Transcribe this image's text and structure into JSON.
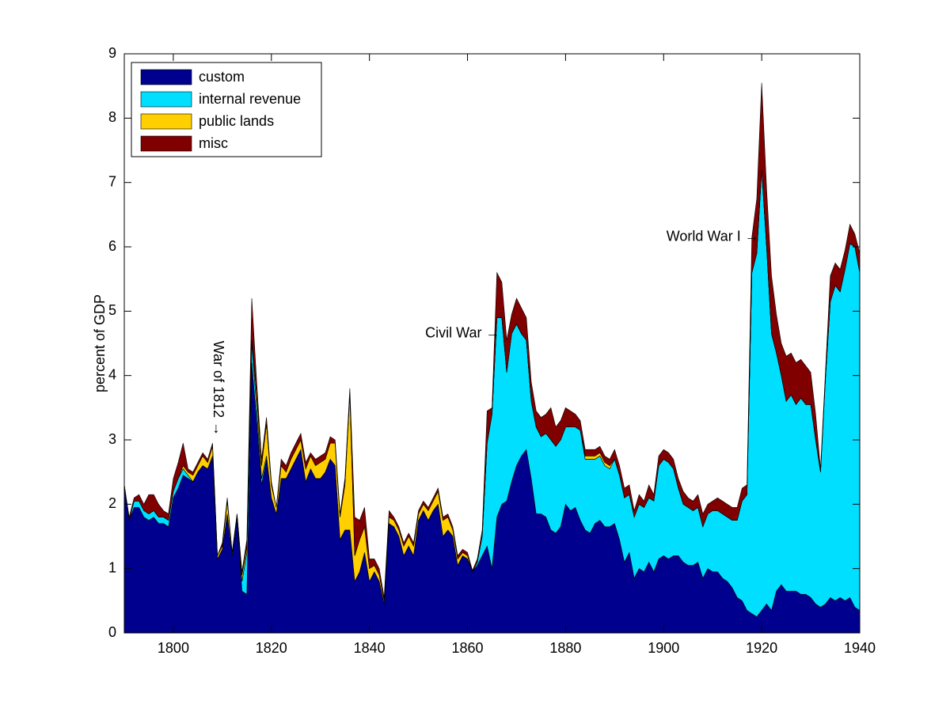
{
  "chart_data": {
    "type": "stacked-area",
    "y_label": "percent of GDP",
    "x": [
      1790,
      1791,
      1792,
      1793,
      1794,
      1795,
      1796,
      1797,
      1798,
      1799,
      1800,
      1801,
      1802,
      1803,
      1804,
      1805,
      1806,
      1807,
      1808,
      1809,
      1810,
      1811,
      1812,
      1813,
      1814,
      1815,
      1816,
      1817,
      1818,
      1819,
      1820,
      1821,
      1822,
      1823,
      1824,
      1825,
      1826,
      1827,
      1828,
      1829,
      1830,
      1831,
      1832,
      1833,
      1834,
      1835,
      1836,
      1837,
      1838,
      1839,
      1840,
      1841,
      1842,
      1843,
      1844,
      1845,
      1846,
      1847,
      1848,
      1849,
      1850,
      1851,
      1852,
      1853,
      1854,
      1855,
      1856,
      1857,
      1858,
      1859,
      1860,
      1861,
      1862,
      1863,
      1864,
      1865,
      1866,
      1867,
      1868,
      1869,
      1870,
      1871,
      1872,
      1873,
      1874,
      1875,
      1876,
      1877,
      1878,
      1879,
      1880,
      1881,
      1882,
      1883,
      1884,
      1885,
      1886,
      1887,
      1888,
      1889,
      1890,
      1891,
      1892,
      1893,
      1894,
      1895,
      1896,
      1897,
      1898,
      1899,
      1900,
      1901,
      1902,
      1903,
      1904,
      1905,
      1906,
      1907,
      1908,
      1909,
      1910,
      1911,
      1912,
      1913,
      1914,
      1915,
      1916,
      1917,
      1918,
      1919,
      1920,
      1921,
      1922,
      1923,
      1924,
      1925,
      1926,
      1927,
      1928,
      1929,
      1930,
      1931,
      1932,
      1933,
      1934,
      1935,
      1936,
      1937,
      1938,
      1939,
      1940
    ],
    "series": [
      {
        "name": "custom",
        "color": "#00008f",
        "values": [
          2.3,
          1.75,
          1.95,
          1.95,
          1.8,
          1.75,
          1.8,
          1.7,
          1.7,
          1.65,
          2.1,
          2.25,
          2.45,
          2.4,
          2.35,
          2.5,
          2.6,
          2.55,
          2.75,
          1.15,
          1.3,
          1.85,
          1.2,
          1.8,
          0.65,
          0.6,
          4.2,
          3.3,
          2.3,
          2.7,
          2.1,
          1.85,
          2.4,
          2.4,
          2.55,
          2.7,
          2.85,
          2.35,
          2.55,
          2.4,
          2.4,
          2.5,
          2.7,
          2.6,
          1.45,
          1.6,
          1.6,
          0.8,
          0.95,
          1.25,
          0.8,
          0.95,
          0.8,
          0.45,
          1.7,
          1.65,
          1.5,
          1.2,
          1.35,
          1.2,
          1.75,
          1.9,
          1.75,
          1.9,
          2.0,
          1.5,
          1.6,
          1.5,
          1.05,
          1.2,
          1.15,
          0.95,
          1.05,
          1.2,
          1.35,
          1.0,
          1.8,
          2.0,
          2.05,
          2.35,
          2.6,
          2.75,
          2.85,
          2.4,
          1.85,
          1.85,
          1.8,
          1.6,
          1.55,
          1.65,
          2.0,
          1.9,
          1.95,
          1.75,
          1.6,
          1.55,
          1.7,
          1.75,
          1.65,
          1.65,
          1.7,
          1.45,
          1.1,
          1.25,
          0.85,
          1.0,
          0.95,
          1.1,
          0.95,
          1.15,
          1.2,
          1.15,
          1.2,
          1.2,
          1.1,
          1.05,
          1.05,
          1.1,
          0.85,
          1.0,
          0.95,
          0.95,
          0.85,
          0.8,
          0.7,
          0.55,
          0.5,
          0.35,
          0.3,
          0.25,
          0.35,
          0.45,
          0.35,
          0.65,
          0.75,
          0.65,
          0.65,
          0.65,
          0.6,
          0.6,
          0.55,
          0.45,
          0.4,
          0.45,
          0.55,
          0.5,
          0.55,
          0.5,
          0.55,
          0.4,
          0.35
        ]
      },
      {
        "name": "internal revenue",
        "color": "#00dfff",
        "values": [
          0,
          0,
          0.1,
          0.1,
          0.1,
          0.1,
          0.1,
          0.1,
          0.1,
          0.1,
          0.1,
          0.15,
          0.1,
          0.05,
          0,
          0,
          0,
          0,
          0,
          0,
          0,
          0,
          0,
          0,
          0.15,
          0.65,
          0.3,
          0.2,
          0.1,
          0.05,
          0,
          0,
          0,
          0,
          0,
          0,
          0,
          0,
          0,
          0,
          0,
          0,
          0,
          0,
          0,
          0,
          0,
          0,
          0,
          0,
          0,
          0,
          0,
          0,
          0,
          0,
          0,
          0,
          0,
          0,
          0,
          0,
          0,
          0,
          0,
          0,
          0,
          0,
          0,
          0,
          0,
          0,
          0.05,
          0.3,
          1.6,
          2.4,
          3.1,
          2.9,
          2.0,
          2.3,
          2.2,
          1.9,
          1.7,
          1.2,
          1.35,
          1.2,
          1.3,
          1.4,
          1.35,
          1.35,
          1.2,
          1.3,
          1.25,
          1.4,
          1.1,
          1.15,
          1.0,
          1.0,
          0.95,
          0.9,
          1.0,
          1.0,
          1.0,
          0.9,
          0.95,
          1.0,
          1.0,
          1.0,
          1.1,
          1.45,
          1.5,
          1.5,
          1.35,
          1.05,
          0.9,
          0.9,
          0.85,
          0.85,
          0.8,
          0.85,
          0.95,
          0.95,
          1.0,
          1.0,
          1.05,
          1.2,
          1.55,
          1.8,
          5.3,
          5.65,
          6.85,
          5.55,
          4.3,
          3.7,
          3.25,
          2.95,
          3.05,
          2.9,
          3.05,
          2.95,
          3.0,
          2.55,
          2.1,
          3.5,
          4.6,
          4.9,
          4.75,
          5.15,
          5.5,
          5.6,
          5.25
        ]
      },
      {
        "name": "public lands",
        "color": "#ffcf00",
        "values": [
          0,
          0,
          0,
          0,
          0,
          0,
          0,
          0,
          0,
          0,
          0,
          0,
          0.05,
          0.05,
          0.1,
          0.1,
          0.15,
          0.1,
          0.15,
          0.05,
          0.05,
          0.2,
          0.05,
          0.05,
          0.1,
          0.1,
          0.05,
          0.2,
          0.2,
          0.5,
          0.2,
          0.1,
          0.2,
          0.1,
          0.15,
          0.15,
          0.15,
          0.2,
          0.2,
          0.2,
          0.25,
          0.2,
          0.25,
          0.35,
          0.35,
          0.7,
          2.1,
          0.4,
          0.5,
          0.4,
          0.2,
          0.1,
          0.1,
          0.05,
          0.1,
          0.1,
          0.1,
          0.15,
          0.15,
          0.15,
          0.1,
          0.1,
          0.15,
          0.15,
          0.2,
          0.25,
          0.2,
          0.1,
          0.1,
          0.05,
          0.05,
          0,
          0,
          0,
          0,
          0,
          0,
          0,
          0,
          0,
          0,
          0,
          0,
          0,
          0,
          0,
          0,
          0,
          0,
          0,
          0,
          0,
          0,
          0,
          0.05,
          0.05,
          0.05,
          0.05,
          0.05,
          0.05,
          0,
          0,
          0,
          0,
          0,
          0,
          0,
          0,
          0,
          0,
          0,
          0,
          0,
          0,
          0,
          0,
          0,
          0,
          0,
          0,
          0,
          0,
          0,
          0,
          0,
          0,
          0,
          0,
          0,
          0,
          0,
          0,
          0,
          0,
          0,
          0,
          0,
          0,
          0,
          0,
          0,
          0,
          0,
          0,
          0,
          0,
          0,
          0,
          0,
          0,
          0
        ]
      },
      {
        "name": "misc",
        "color": "#800000",
        "values": [
          0,
          0.05,
          0.05,
          0.1,
          0.1,
          0.3,
          0.25,
          0.2,
          0.1,
          0.1,
          0.2,
          0.25,
          0.35,
          0.05,
          0.05,
          0.05,
          0.05,
          0.05,
          0.05,
          0,
          0.05,
          0.05,
          0,
          0,
          0.05,
          0.1,
          0.65,
          0.2,
          0.1,
          0.1,
          0.05,
          0,
          0.1,
          0.1,
          0.1,
          0.1,
          0.1,
          0.1,
          0.05,
          0.1,
          0.1,
          0.1,
          0.1,
          0.05,
          0.05,
          0.1,
          0.1,
          0.6,
          0.3,
          0.3,
          0.15,
          0.1,
          0.1,
          0.05,
          0.1,
          0.05,
          0.05,
          0.05,
          0.05,
          0.05,
          0.05,
          0.05,
          0.05,
          0.05,
          0.05,
          0.05,
          0.05,
          0.05,
          0.05,
          0.05,
          0.05,
          0.02,
          0.05,
          0.1,
          0.5,
          0.1,
          0.7,
          0.55,
          0.5,
          0.3,
          0.4,
          0.4,
          0.35,
          0.3,
          0.25,
          0.3,
          0.3,
          0.5,
          0.3,
          0.3,
          0.3,
          0.25,
          0.2,
          0.15,
          0.1,
          0.1,
          0.1,
          0.1,
          0.1,
          0.1,
          0.15,
          0.15,
          0.15,
          0.15,
          0.1,
          0.15,
          0.1,
          0.2,
          0.1,
          0.15,
          0.15,
          0.15,
          0.15,
          0.15,
          0.2,
          0.15,
          0.15,
          0.2,
          0.2,
          0.15,
          0.15,
          0.2,
          0.2,
          0.2,
          0.2,
          0.2,
          0.2,
          0.15,
          0.55,
          0.85,
          1.35,
          0.9,
          0.9,
          0.6,
          0.5,
          0.7,
          0.65,
          0.65,
          0.6,
          0.6,
          0.5,
          0.4,
          0.05,
          0.1,
          0.4,
          0.35,
          0.35,
          0.3,
          0.3,
          0.2,
          0.3
        ]
      }
    ],
    "xlim": [
      1790,
      1940
    ],
    "xticks": [
      1800,
      1820,
      1840,
      1860,
      1880,
      1900,
      1920,
      1940
    ],
    "ylim": [
      0,
      9
    ],
    "yticks": [
      0,
      1,
      2,
      3,
      4,
      5,
      6,
      7,
      8,
      9
    ],
    "legend": "upper left",
    "annotations": [
      {
        "text": "War of 1812 →",
        "x": 1809,
        "y": 3.8
      },
      {
        "text": "Civil War →",
        "x": 1859,
        "y": 4.65
      },
      {
        "text": "World War I →",
        "x": 1910,
        "y": 6.15
      }
    ]
  }
}
